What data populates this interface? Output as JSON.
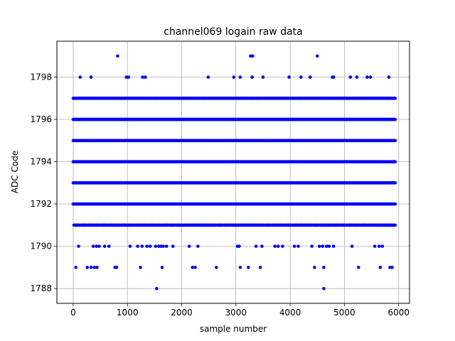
{
  "chart_data": {
    "type": "scatter",
    "title": "channel069 logain raw data",
    "xlabel": "sample number",
    "ylabel": "ADC Code",
    "xlim": [
      -300,
      6200
    ],
    "ylim": [
      1787.3,
      1799.7
    ],
    "xticks": [
      0,
      1000,
      2000,
      3000,
      4000,
      5000,
      6000
    ],
    "yticks": [
      1788,
      1790,
      1792,
      1794,
      1796,
      1798
    ],
    "grid": true,
    "marker_color": "#0000ff",
    "series": [
      {
        "dense_levels": [
          1791,
          1792,
          1793,
          1794,
          1795,
          1796,
          1797
        ],
        "x_range": [
          0,
          5940
        ],
        "points": [
          {
            "x": 820,
            "y": 1799
          },
          {
            "x": 3270,
            "y": 1799
          },
          {
            "x": 3310,
            "y": 1799
          },
          {
            "x": 4500,
            "y": 1799
          },
          {
            "x": 130,
            "y": 1798
          },
          {
            "x": 330,
            "y": 1798
          },
          {
            "x": 980,
            "y": 1798
          },
          {
            "x": 1020,
            "y": 1798
          },
          {
            "x": 1280,
            "y": 1798
          },
          {
            "x": 1330,
            "y": 1798
          },
          {
            "x": 2490,
            "y": 1798
          },
          {
            "x": 2960,
            "y": 1798
          },
          {
            "x": 3080,
            "y": 1798
          },
          {
            "x": 3300,
            "y": 1798
          },
          {
            "x": 3500,
            "y": 1798
          },
          {
            "x": 3980,
            "y": 1798
          },
          {
            "x": 4200,
            "y": 1798
          },
          {
            "x": 4370,
            "y": 1798
          },
          {
            "x": 4780,
            "y": 1798
          },
          {
            "x": 4800,
            "y": 1798
          },
          {
            "x": 5110,
            "y": 1798
          },
          {
            "x": 5230,
            "y": 1798
          },
          {
            "x": 5420,
            "y": 1798
          },
          {
            "x": 5480,
            "y": 1798
          },
          {
            "x": 5820,
            "y": 1798
          },
          {
            "x": 100,
            "y": 1790
          },
          {
            "x": 370,
            "y": 1790
          },
          {
            "x": 430,
            "y": 1790
          },
          {
            "x": 480,
            "y": 1790
          },
          {
            "x": 580,
            "y": 1790
          },
          {
            "x": 660,
            "y": 1790
          },
          {
            "x": 1050,
            "y": 1790
          },
          {
            "x": 1190,
            "y": 1790
          },
          {
            "x": 1270,
            "y": 1790
          },
          {
            "x": 1360,
            "y": 1790
          },
          {
            "x": 1420,
            "y": 1790
          },
          {
            "x": 1520,
            "y": 1790
          },
          {
            "x": 1580,
            "y": 1790
          },
          {
            "x": 1620,
            "y": 1790
          },
          {
            "x": 1660,
            "y": 1790
          },
          {
            "x": 1720,
            "y": 1790
          },
          {
            "x": 1840,
            "y": 1790
          },
          {
            "x": 2140,
            "y": 1790
          },
          {
            "x": 2300,
            "y": 1790
          },
          {
            "x": 3030,
            "y": 1790
          },
          {
            "x": 3060,
            "y": 1790
          },
          {
            "x": 3370,
            "y": 1790
          },
          {
            "x": 3480,
            "y": 1790
          },
          {
            "x": 3720,
            "y": 1790
          },
          {
            "x": 3780,
            "y": 1790
          },
          {
            "x": 3860,
            "y": 1790
          },
          {
            "x": 4080,
            "y": 1790
          },
          {
            "x": 4150,
            "y": 1790
          },
          {
            "x": 4400,
            "y": 1790
          },
          {
            "x": 4540,
            "y": 1790
          },
          {
            "x": 4600,
            "y": 1790
          },
          {
            "x": 4670,
            "y": 1790
          },
          {
            "x": 4720,
            "y": 1790
          },
          {
            "x": 4800,
            "y": 1790
          },
          {
            "x": 5140,
            "y": 1790
          },
          {
            "x": 5560,
            "y": 1790
          },
          {
            "x": 5640,
            "y": 1790
          },
          {
            "x": 5700,
            "y": 1790
          },
          {
            "x": 50,
            "y": 1789
          },
          {
            "x": 260,
            "y": 1789
          },
          {
            "x": 330,
            "y": 1789
          },
          {
            "x": 390,
            "y": 1789
          },
          {
            "x": 440,
            "y": 1789
          },
          {
            "x": 770,
            "y": 1789
          },
          {
            "x": 800,
            "y": 1789
          },
          {
            "x": 1240,
            "y": 1789
          },
          {
            "x": 1640,
            "y": 1789
          },
          {
            "x": 2200,
            "y": 1789
          },
          {
            "x": 2250,
            "y": 1789
          },
          {
            "x": 2640,
            "y": 1789
          },
          {
            "x": 3080,
            "y": 1789
          },
          {
            "x": 3230,
            "y": 1789
          },
          {
            "x": 3450,
            "y": 1789
          },
          {
            "x": 4450,
            "y": 1789
          },
          {
            "x": 4620,
            "y": 1789
          },
          {
            "x": 5260,
            "y": 1789
          },
          {
            "x": 5660,
            "y": 1789
          },
          {
            "x": 5840,
            "y": 1789
          },
          {
            "x": 5880,
            "y": 1789
          },
          {
            "x": 1540,
            "y": 1788
          },
          {
            "x": 4620,
            "y": 1788
          }
        ]
      }
    ]
  }
}
